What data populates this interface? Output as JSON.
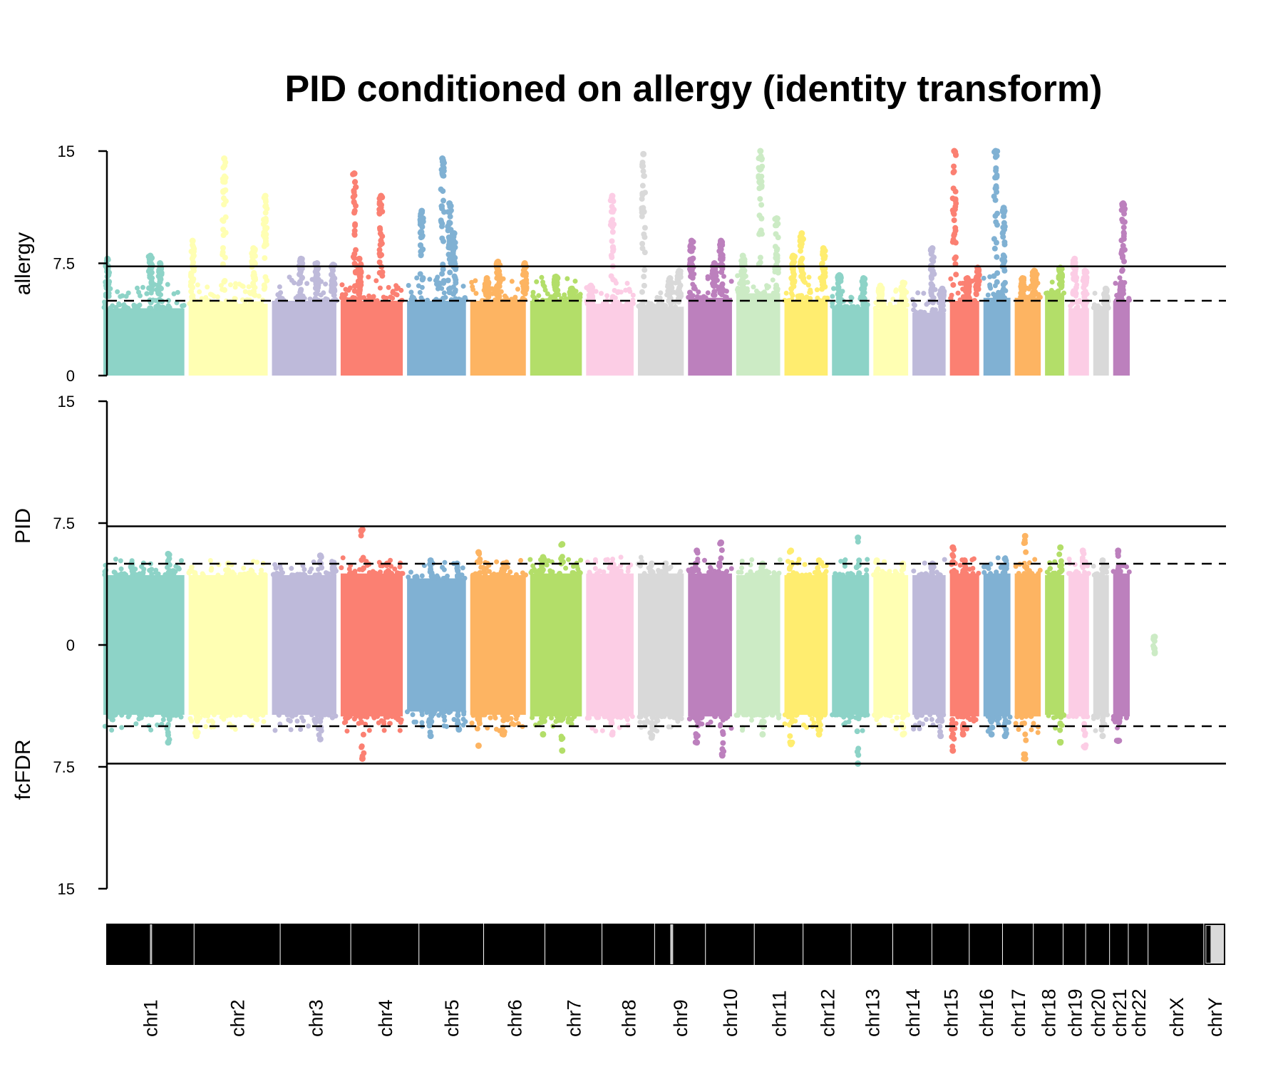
{
  "chart_data": {
    "type": "scatter",
    "title": "PID conditioned on allergy (identity transform)",
    "panels": [
      {
        "ylabel": "allergy",
        "ylim": [
          0,
          15
        ],
        "ticks": [
          "15",
          "7.5",
          "0"
        ],
        "solid_threshold": 7.3,
        "dashed_threshold": 5.0
      },
      {
        "ylabel": "PID",
        "ylim": [
          0,
          15
        ],
        "ticks": [
          "15",
          "7.5",
          "0"
        ],
        "solid_threshold": 7.3,
        "dashed_threshold": 5.0
      },
      {
        "ylabel": "fcFDR",
        "ylim": [
          0,
          15
        ],
        "ticks": [
          "7.5",
          "15"
        ],
        "solid_threshold": 7.3,
        "dashed_threshold": 5.0
      }
    ],
    "chromosomes": [
      {
        "name": "chr1",
        "color": "#8DD3C7",
        "base_upper": 4.5,
        "peaks_upper": [
          [
            0.05,
            7.8
          ],
          [
            0.58,
            8.0
          ],
          [
            0.7,
            7.5
          ]
        ],
        "base_lower": 4.3,
        "peaks_lower": [
          [
            0.8,
            5.6
          ],
          [
            0.35,
            5.0
          ]
        ],
        "neg_peaks": [
          [
            0.8,
            6.0
          ]
        ]
      },
      {
        "name": "chr2",
        "color": "#FFFFB3",
        "base_upper": 4.8,
        "peaks_upper": [
          [
            0.05,
            9.0
          ],
          [
            0.45,
            14.5
          ],
          [
            0.82,
            8.5
          ],
          [
            0.97,
            12.0
          ]
        ],
        "base_lower": 4.3,
        "peaks_lower": [
          [
            0.5,
            5.0
          ]
        ],
        "neg_peaks": [
          [
            0.1,
            5.6
          ]
        ]
      },
      {
        "name": "chr3",
        "color": "#BEBADA",
        "base_upper": 5.0,
        "peaks_upper": [
          [
            0.45,
            7.8
          ],
          [
            0.7,
            7.5
          ],
          [
            0.95,
            7.4
          ]
        ],
        "base_lower": 4.3,
        "peaks_lower": [
          [
            0.75,
            5.5
          ],
          [
            0.95,
            5.0
          ]
        ],
        "neg_peaks": [
          [
            0.75,
            5.8
          ]
        ]
      },
      {
        "name": "chr4",
        "color": "#FB8072",
        "base_upper": 5.0,
        "peaks_upper": [
          [
            0.22,
            13.5
          ],
          [
            0.65,
            12.0
          ],
          [
            0.3,
            7.8
          ]
        ],
        "base_lower": 4.4,
        "peaks_lower": [
          [
            0.35,
            7.1
          ],
          [
            0.75,
            5.0
          ]
        ],
        "neg_peaks": [
          [
            0.35,
            7.0
          ]
        ]
      },
      {
        "name": "chr5",
        "color": "#80B1D3",
        "base_upper": 5.0,
        "peaks_upper": [
          [
            0.25,
            11.0
          ],
          [
            0.6,
            14.5
          ],
          [
            0.72,
            11.5
          ],
          [
            0.8,
            9.5
          ]
        ],
        "base_lower": 4.1,
        "peaks_lower": [
          [
            0.4,
            5.2
          ],
          [
            0.85,
            5.0
          ]
        ],
        "neg_peaks": [
          [
            0.4,
            5.6
          ],
          [
            0.88,
            5.2
          ]
        ]
      },
      {
        "name": "chr6",
        "color": "#FDB462",
        "base_upper": 5.0,
        "peaks_upper": [
          [
            0.5,
            7.6
          ],
          [
            0.98,
            7.5
          ],
          [
            0.3,
            6.5
          ]
        ],
        "base_lower": 4.3,
        "peaks_lower": [
          [
            0.15,
            5.7
          ],
          [
            0.6,
            5.0
          ]
        ],
        "neg_peaks": [
          [
            0.15,
            6.2
          ],
          [
            0.6,
            5.5
          ]
        ]
      },
      {
        "name": "chr7",
        "color": "#B3DE69",
        "base_upper": 5.0,
        "peaks_upper": [
          [
            0.5,
            6.6
          ],
          [
            0.8,
            5.8
          ]
        ],
        "base_lower": 4.4,
        "peaks_lower": [
          [
            0.62,
            6.2
          ],
          [
            0.25,
            5.4
          ]
        ],
        "neg_peaks": [
          [
            0.62,
            6.5
          ],
          [
            0.25,
            5.5
          ]
        ]
      },
      {
        "name": "chr8",
        "color": "#FCCDE5",
        "base_upper": 4.8,
        "peaks_upper": [
          [
            0.55,
            12.0
          ],
          [
            0.1,
            6.0
          ]
        ],
        "base_lower": 4.4,
        "peaks_lower": [
          [
            0.55,
            5.0
          ]
        ],
        "neg_peaks": [
          [
            0.55,
            5.5
          ]
        ]
      },
      {
        "name": "chr9",
        "color": "#D9D9D9",
        "base_upper": 4.6,
        "peaks_upper": [
          [
            0.12,
            14.8
          ],
          [
            0.9,
            7.0
          ],
          [
            0.7,
            6.5
          ]
        ],
        "base_lower": 4.4,
        "peaks_lower": [
          [
            0.3,
            5.0
          ],
          [
            0.6,
            5.0
          ]
        ],
        "neg_peaks": [
          [
            0.3,
            5.7
          ]
        ]
      },
      {
        "name": "chr10",
        "color": "#BC80BD",
        "base_upper": 5.2,
        "peaks_upper": [
          [
            0.08,
            9.0
          ],
          [
            0.75,
            9.0
          ],
          [
            0.6,
            7.5
          ]
        ],
        "base_lower": 4.4,
        "peaks_lower": [
          [
            0.2,
            5.8
          ],
          [
            0.75,
            6.3
          ]
        ],
        "neg_peaks": [
          [
            0.2,
            6.0
          ],
          [
            0.78,
            6.8
          ]
        ]
      },
      {
        "name": "chr11",
        "color": "#CCEBC5",
        "base_upper": 5.5,
        "peaks_upper": [
          [
            0.55,
            15.0
          ],
          [
            0.92,
            10.5
          ],
          [
            0.15,
            8.0
          ]
        ],
        "base_lower": 4.3,
        "peaks_lower": [
          [
            0.6,
            5.0
          ]
        ],
        "neg_peaks": [
          [
            0.6,
            5.5
          ]
        ]
      },
      {
        "name": "chr12",
        "color": "#FFED6F",
        "base_upper": 5.0,
        "peaks_upper": [
          [
            0.4,
            9.5
          ],
          [
            0.9,
            8.5
          ],
          [
            0.2,
            8.0
          ]
        ],
        "base_lower": 4.3,
        "peaks_lower": [
          [
            0.15,
            5.8
          ],
          [
            0.8,
            5.2
          ]
        ],
        "neg_peaks": [
          [
            0.15,
            6.1
          ],
          [
            0.8,
            5.5
          ]
        ]
      },
      {
        "name": "chr13",
        "color": "#8DD3C7",
        "base_upper": 4.6,
        "peaks_upper": [
          [
            0.2,
            6.7
          ],
          [
            0.85,
            6.5
          ]
        ],
        "base_lower": 4.3,
        "peaks_lower": [
          [
            0.7,
            6.6
          ]
        ],
        "neg_peaks": [
          [
            0.7,
            7.3
          ]
        ]
      },
      {
        "name": "chr14",
        "color": "#FFFFB3",
        "base_upper": 4.5,
        "peaks_upper": [
          [
            0.2,
            6.0
          ],
          [
            0.85,
            6.2
          ]
        ],
        "base_lower": 4.3,
        "peaks_lower": [
          [
            0.1,
            5.2
          ],
          [
            0.85,
            5.0
          ]
        ],
        "neg_peaks": [
          [
            0.85,
            5.5
          ]
        ]
      },
      {
        "name": "chr15",
        "color": "#BEBADA",
        "base_upper": 4.2,
        "peaks_upper": [
          [
            0.6,
            8.5
          ],
          [
            0.9,
            5.8
          ]
        ],
        "base_lower": 4.3,
        "peaks_lower": [
          [
            0.6,
            5.0
          ]
        ],
        "neg_peaks": [
          [
            0.85,
            5.6
          ]
        ]
      },
      {
        "name": "chr16",
        "color": "#FB8072",
        "base_upper": 5.0,
        "peaks_upper": [
          [
            0.15,
            15.0
          ],
          [
            0.6,
            6.5
          ],
          [
            0.95,
            7.2
          ]
        ],
        "base_lower": 4.4,
        "peaks_lower": [
          [
            0.1,
            6.0
          ],
          [
            0.5,
            5.2
          ]
        ],
        "neg_peaks": [
          [
            0.1,
            6.5
          ],
          [
            0.45,
            5.5
          ]
        ]
      },
      {
        "name": "chr17",
        "color": "#80B1D3",
        "base_upper": 5.2,
        "peaks_upper": [
          [
            0.45,
            15.0
          ],
          [
            0.75,
            11.2
          ]
        ],
        "base_lower": 4.4,
        "peaks_lower": [
          [
            0.8,
            5.3
          ]
        ],
        "neg_peaks": [
          [
            0.8,
            5.6
          ],
          [
            0.3,
            5.5
          ]
        ]
      },
      {
        "name": "chr18",
        "color": "#FDB462",
        "base_upper": 5.2,
        "peaks_upper": [
          [
            0.3,
            6.5
          ],
          [
            0.75,
            7.0
          ]
        ],
        "base_lower": 4.4,
        "peaks_lower": [
          [
            0.4,
            6.7
          ]
        ],
        "neg_peaks": [
          [
            0.4,
            7.0
          ]
        ]
      },
      {
        "name": "chr19",
        "color": "#B3DE69",
        "base_upper": 5.5,
        "peaks_upper": [
          [
            0.8,
            7.2
          ]
        ],
        "base_lower": 4.3,
        "peaks_lower": [
          [
            0.8,
            6.0
          ]
        ],
        "neg_peaks": [
          [
            0.8,
            6.0
          ]
        ]
      },
      {
        "name": "chr20",
        "color": "#FCCDE5",
        "base_upper": 4.5,
        "peaks_upper": [
          [
            0.3,
            7.8
          ],
          [
            0.8,
            7.0
          ]
        ],
        "base_lower": 4.4,
        "peaks_lower": [
          [
            0.7,
            5.8
          ]
        ],
        "neg_peaks": [
          [
            0.8,
            6.3
          ]
        ]
      },
      {
        "name": "chr21",
        "color": "#D9D9D9",
        "base_upper": 4.5,
        "peaks_upper": [
          [
            0.8,
            5.8
          ]
        ],
        "base_lower": 4.3,
        "peaks_lower": [
          [
            0.6,
            5.2
          ]
        ],
        "neg_peaks": [
          [
            0.6,
            5.6
          ]
        ]
      },
      {
        "name": "chr22",
        "color": "#BC80BD",
        "base_upper": 5.0,
        "peaks_upper": [
          [
            0.6,
            11.5
          ],
          [
            0.5,
            6.2
          ]
        ],
        "base_lower": 4.4,
        "peaks_lower": [
          [
            0.3,
            5.8
          ]
        ],
        "neg_peaks": [
          [
            0.3,
            5.9
          ]
        ]
      },
      {
        "name": "chrX",
        "color": "#CCEBC5",
        "base_upper": 0,
        "peaks_upper": [],
        "base_lower": 0,
        "peaks_lower": [
          [
            0.5,
            0.5
          ]
        ],
        "neg_peaks": [
          [
            0.5,
            0.5
          ]
        ]
      },
      {
        "name": "chrY",
        "color": "#FFED6F",
        "base_upper": 0,
        "peaks_upper": [],
        "base_lower": 0,
        "peaks_lower": [],
        "neg_peaks": []
      }
    ],
    "grid": false,
    "legend": "none"
  }
}
